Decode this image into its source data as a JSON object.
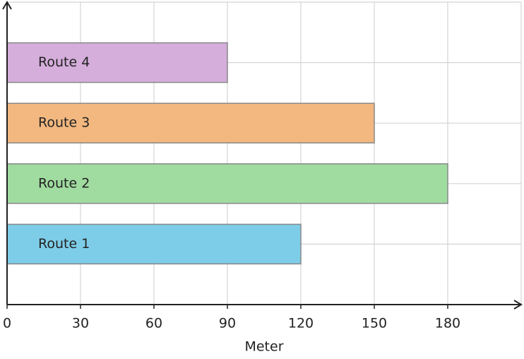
{
  "chart_data": {
    "type": "barh",
    "x_label": "Meter",
    "categories": [
      "Route 1",
      "Route 2",
      "Route 3",
      "Route 4"
    ],
    "values": [
      120,
      180,
      150,
      90
    ],
    "colors": [
      "#7ecde8",
      "#a0dba0",
      "#f2b880",
      "#d5aedb"
    ],
    "xlim": [
      0,
      210
    ],
    "xticks": [
      0,
      30,
      60,
      90,
      120,
      150,
      180
    ],
    "grid": true
  }
}
